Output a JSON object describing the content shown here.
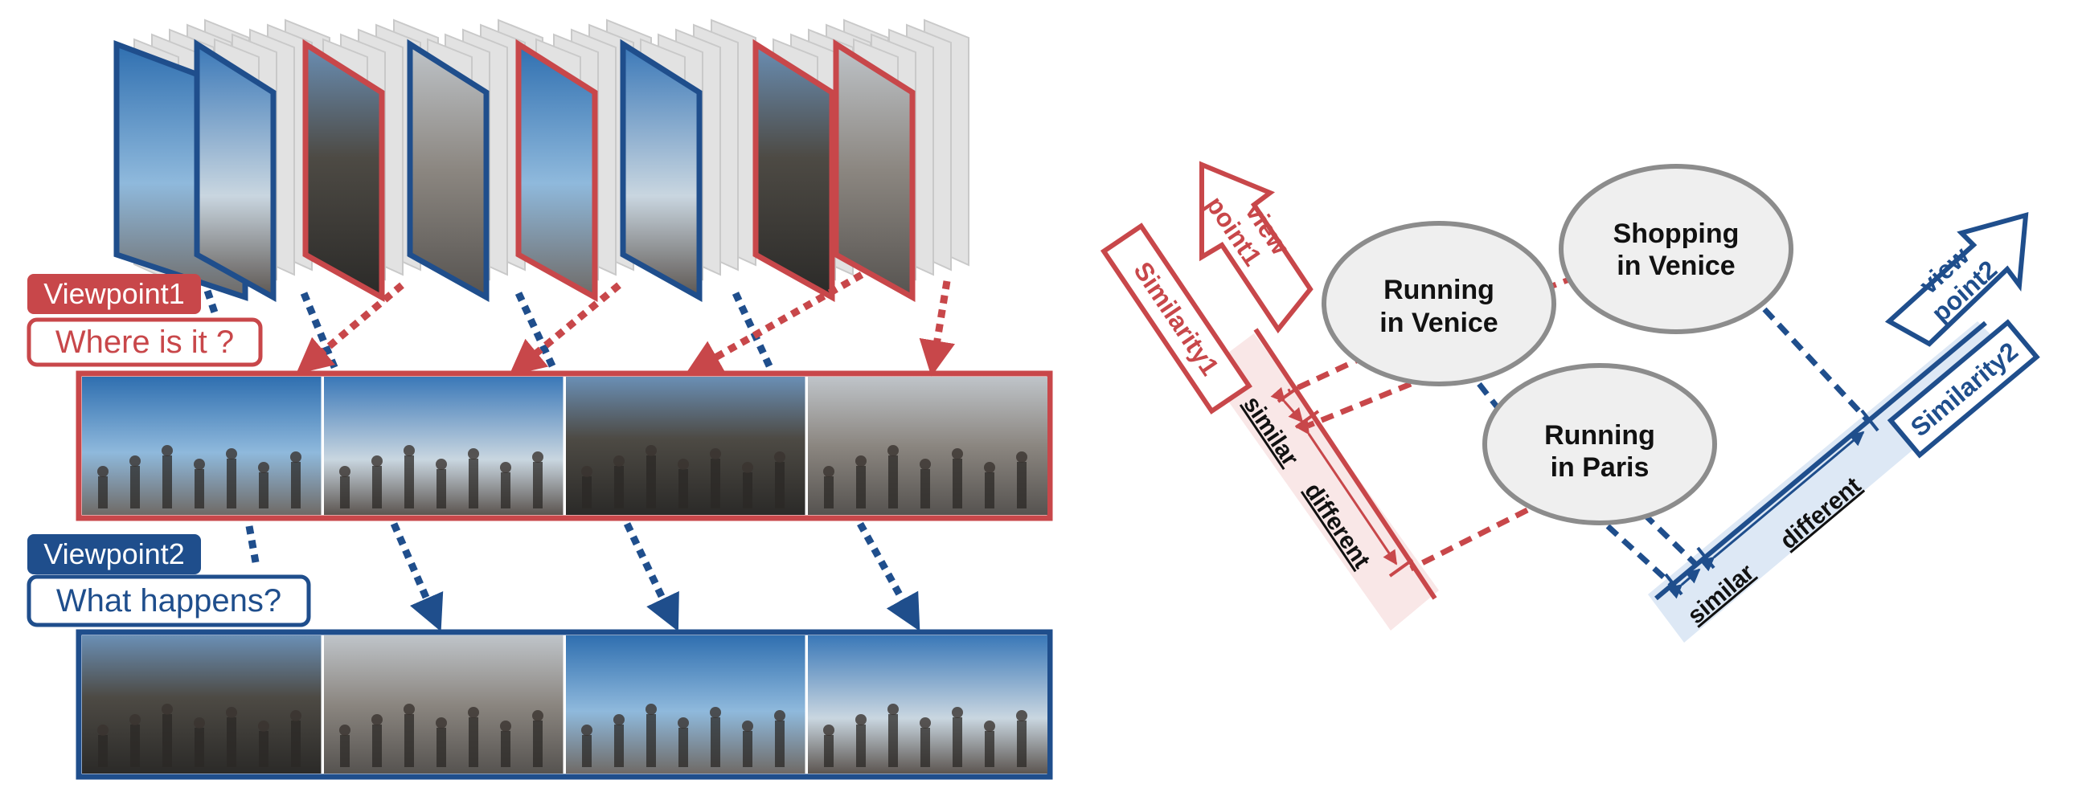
{
  "colors": {
    "red": "#c8474a",
    "blue": "#1f4e8c",
    "red_band": "#f9e7e7",
    "blue_band": "#dde8f5",
    "ellipse_fill": "#efefef",
    "ellipse_stroke": "#8c8c8c",
    "frame_gray": "#d8d8d8"
  },
  "left_panel": {
    "viewpoint1_tag": "Viewpoint1",
    "viewpoint1_question": "Where is it ?",
    "viewpoint2_tag": "Viewpoint2",
    "viewpoint2_question": "What happens?",
    "frame_stack_colors": [
      "blue",
      "blue",
      "red",
      "blue",
      "red",
      "blue",
      "red",
      "red"
    ],
    "viewpoint1_images": [
      "doge-palace-crowd",
      "st-mark-square-runners",
      "basilica-square",
      "canal-side-buildings"
    ],
    "viewpoint2_images": [
      "cheering-spectators",
      "runner-by-water",
      "red-haired-spectator",
      "runners-on-street"
    ]
  },
  "right_panel": {
    "viewpoint1_arrow": [
      "view",
      "point1"
    ],
    "viewpoint2_arrow": [
      "view",
      "point2"
    ],
    "similarity1_label": "Similarity1",
    "similarity2_label": "Similarity2",
    "axis1_similar": "similar",
    "axis1_different": "different",
    "axis2_similar": "similar",
    "axis2_different": "different",
    "nodes": [
      {
        "id": "running-venice",
        "lines": [
          "Running",
          "in Venice"
        ]
      },
      {
        "id": "shopping-venice",
        "lines": [
          "Shopping",
          "in Venice"
        ]
      },
      {
        "id": "running-paris",
        "lines": [
          "Running",
          "in Paris"
        ]
      }
    ]
  }
}
